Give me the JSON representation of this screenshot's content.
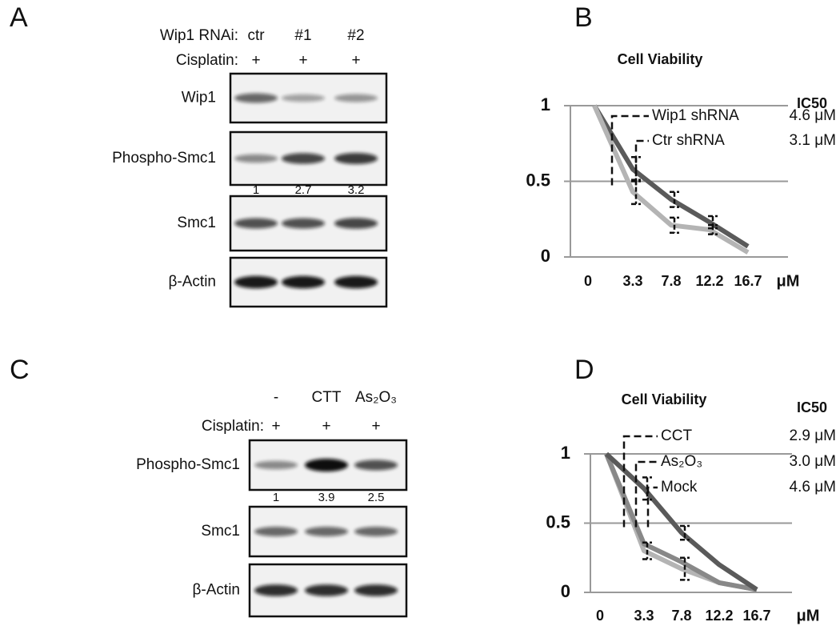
{
  "blots": [
    {
      "letter": "A",
      "lanes_header": "Wip1 RNAi:",
      "lanes": [
        "ctr",
        "#1",
        "#2"
      ],
      "treatment": "Cisplatin:",
      "treatment_marks": [
        "+",
        "+",
        "+"
      ],
      "rows": [
        {
          "label": "Wip1"
        },
        {
          "label": "Phospho-Smc1",
          "quant": [
            1,
            2.7,
            3.2
          ]
        },
        {
          "label": "Smc1"
        },
        {
          "label": "β-Actin"
        }
      ]
    },
    {
      "letter": "C",
      "lanes": [
        "-",
        "CTT",
        "As₂O₃"
      ],
      "treatment": "Cisplatin:",
      "treatment_marks": [
        "+",
        "+",
        "+"
      ],
      "rows": [
        {
          "label": "Phospho-Smc1",
          "quant": [
            1,
            3.9,
            2.5
          ]
        },
        {
          "label": "Smc1"
        },
        {
          "label": "β-Actin"
        }
      ]
    }
  ],
  "chart_data": [
    {
      "type": "line",
      "letter": "B",
      "title": "Cell Viability",
      "categories": [
        "0",
        "3.3",
        "7.8",
        "12.2",
        "16.7"
      ],
      "x_unit": "μM",
      "ylim": [
        0,
        1
      ],
      "yticks": [
        0,
        0.5,
        1
      ],
      "grid": true,
      "legend_title": "IC50",
      "series": [
        {
          "name": "Wip1 shRNA",
          "ic50": "4.6 μM",
          "color": "#5a5a5a",
          "values": [
            1,
            0.58,
            0.38,
            0.23,
            0.07
          ],
          "errors": [
            null,
            0.08,
            0.05,
            0.04,
            null
          ]
        },
        {
          "name": "Ctr shRNA",
          "ic50": "3.1 μM",
          "color": "#b4b4b4",
          "values": [
            1,
            0.43,
            0.21,
            0.18,
            0.03
          ],
          "errors": [
            null,
            0.08,
            0.05,
            0.03,
            null
          ]
        }
      ]
    },
    {
      "type": "line",
      "letter": "D",
      "title": "Cell Viability",
      "categories": [
        "0",
        "3.3",
        "7.8",
        "12.2",
        "16.7"
      ],
      "x_unit": "μM",
      "ylim": [
        0,
        1
      ],
      "yticks": [
        0,
        0.5,
        1
      ],
      "grid": true,
      "legend_title": "IC50",
      "series": [
        {
          "name": "CCT",
          "ic50": "2.9 μM",
          "color": "#b4b4b4",
          "values": [
            1,
            0.3,
            0.17,
            0.07,
            0.02
          ],
          "errors": [
            null,
            0.06,
            0.08,
            null,
            null
          ]
        },
        {
          "name": "As₂O₃",
          "ic50": "3.0 μM",
          "color": "#888888",
          "values": [
            1,
            0.35,
            0.22,
            0.07,
            0.02
          ],
          "errors": [
            null,
            null,
            null,
            null,
            null
          ]
        },
        {
          "name": "Mock",
          "ic50": "4.6 μM",
          "color": "#5a5a5a",
          "values": [
            1,
            0.75,
            0.43,
            0.2,
            0.02
          ],
          "errors": [
            null,
            0.08,
            0.05,
            null,
            null
          ]
        }
      ]
    }
  ]
}
